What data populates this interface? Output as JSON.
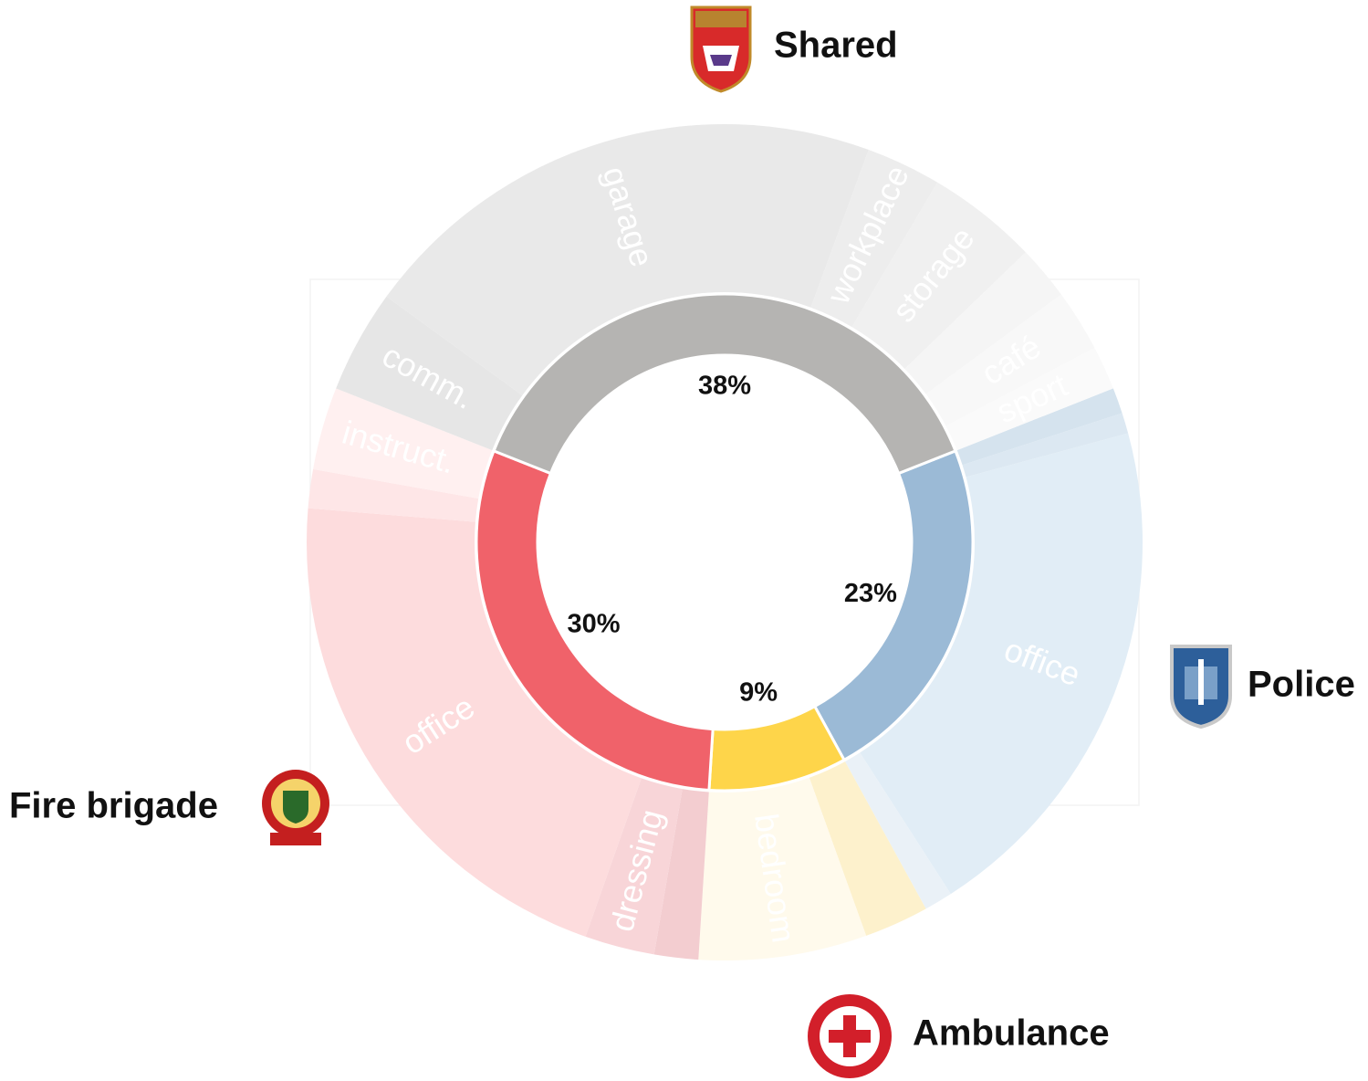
{
  "chart_data": {
    "type": "sunburst",
    "categories": [
      "Police",
      "Ambulance",
      "Fire brigade",
      "Shared"
    ],
    "values": [
      23,
      9,
      30,
      38
    ],
    "value_labels": [
      "23%",
      "9%",
      "30%",
      "38%"
    ],
    "colors": [
      "#9bbad6",
      "#fed54a",
      "#f0626a",
      "#b5b4b2"
    ],
    "children": [
      [
        {
          "name": null,
          "value": 1.0,
          "color": "#d5e3ee"
        },
        {
          "name": null,
          "value": 0.8,
          "color": "#dce8f2"
        },
        {
          "name": "office",
          "value": 20.1,
          "color": "#e1edf6"
        },
        {
          "name": null,
          "value": 1.1,
          "color": "#eaf1f7"
        }
      ],
      [
        {
          "name": null,
          "value": 2.5,
          "color": "#fdf1cc"
        },
        {
          "name": "bedroom",
          "value": 6.5,
          "color": "#fffaec"
        }
      ],
      [
        {
          "name": null,
          "value": 1.7,
          "color": "#f3cdd0"
        },
        {
          "name": "dressing",
          "value": 2.7,
          "color": "#f8d5d8"
        },
        {
          "name": "office",
          "value": 20.9,
          "color": "#fddcdd"
        },
        {
          "name": null,
          "value": 1.5,
          "color": "#fee6e7"
        },
        {
          "name": "instruct.",
          "value": 3.2,
          "color": "#fff0f0"
        }
      ],
      [
        {
          "name": "comm.",
          "value": 4.0,
          "color": "#e6e6e6"
        },
        {
          "name": "garage",
          "value": 20.6,
          "color": "#e9e9e9"
        },
        {
          "name": "workplace",
          "value": 2.9,
          "color": "#ededed"
        },
        {
          "name": "storage",
          "value": 4.3,
          "color": "#f0f0f0"
        },
        {
          "name": null,
          "value": 2.1,
          "color": "#f5f5f5"
        },
        {
          "name": "café",
          "value": 2.4,
          "color": "#f8f8f8"
        },
        {
          "name": "sport",
          "value": 1.7,
          "color": "#fafafa"
        }
      ]
    ]
  }
}
